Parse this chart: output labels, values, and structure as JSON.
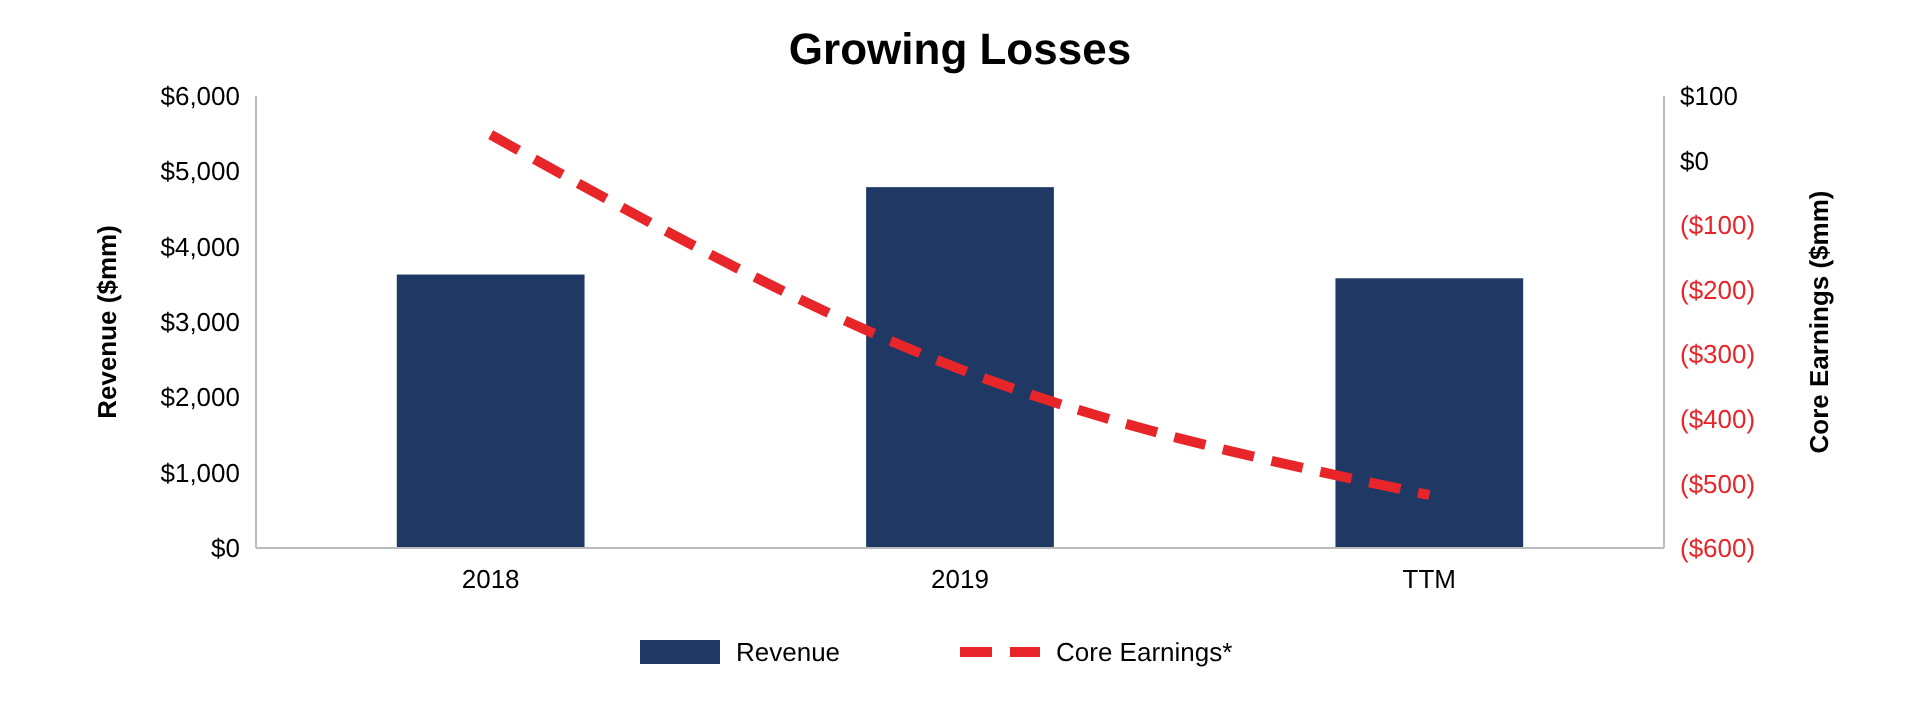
{
  "chart_data": {
    "type": "bar",
    "title": "Growing Losses",
    "ylabel": "Revenue ($mm)",
    "y2label": "Core Earnings ($mm)",
    "categories": [
      "2018",
      "2019",
      "TTM"
    ],
    "series": [
      {
        "name": "Revenue",
        "color": "#1f3864",
        "values": [
          3630,
          4790,
          3580
        ]
      },
      {
        "name": "Core Earnings*",
        "type": "line",
        "axis": "y2",
        "color": "#e8262a",
        "line_style": "dashed",
        "marker": "none",
        "values": [
          40,
          -323,
          -518
        ]
      }
    ],
    "ylim": [
      0,
      6000
    ],
    "yticks": [
      {
        "value": 0,
        "label": "$0"
      },
      {
        "value": 1000,
        "label": "$1,000"
      },
      {
        "value": 2000,
        "label": "$2,000"
      },
      {
        "value": 3000,
        "label": "$3,000"
      },
      {
        "value": 4000,
        "label": "$4,000"
      },
      {
        "value": 5000,
        "label": "$5,000"
      },
      {
        "value": 6000,
        "label": "$6,000"
      }
    ],
    "y2lim": [
      -600,
      100
    ],
    "y2ticks": [
      {
        "value": 100,
        "label": "$100"
      },
      {
        "value": 0,
        "label": "$0"
      },
      {
        "value": -100,
        "label": "($100)"
      },
      {
        "value": -200,
        "label": "($200)"
      },
      {
        "value": -300,
        "label": "($300)"
      },
      {
        "value": -400,
        "label": "($400)"
      },
      {
        "value": -500,
        "label": "($500)"
      },
      {
        "value": -600,
        "label": "($600)"
      }
    ],
    "grid": false,
    "legend": "bottom"
  }
}
